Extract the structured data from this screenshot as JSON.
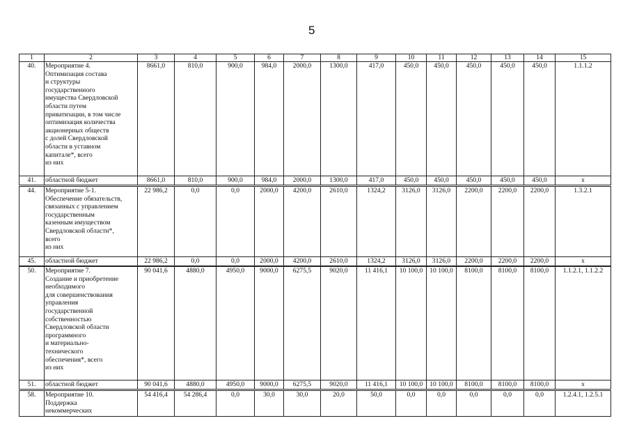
{
  "page_number": "5",
  "header": [
    "1",
    "2",
    "3",
    "4",
    "5",
    "6",
    "7",
    "8",
    "9",
    "10",
    "11",
    "12",
    "13",
    "14",
    "15"
  ],
  "blocks": [
    {
      "rows": [
        {
          "num": "40.",
          "desc": "Мероприятие 4.\nОптимизация состава\nи структуры\nгосударственного\nимущества Свердловской\nобласти путем\nприватизации, в том числе\nоптимизация количества\nакционерных обществ\nс долей Свердловской\nобласти в уставном\nкапитале*, всего\nиз них",
          "values": [
            "8661,0",
            "810,0",
            "900,0",
            "984,0",
            "2000,0",
            "1300,0",
            "417,0",
            "450,0",
            "450,0",
            "450,0",
            "450,0",
            "450,0"
          ],
          "target": "1.1.1.2"
        },
        {
          "num": "41.",
          "desc": "областной бюджет",
          "values": [
            "8661,0",
            "810,0",
            "900,0",
            "984,0",
            "2000,0",
            "1300,0",
            "417,0",
            "450,0",
            "450,0",
            "450,0",
            "450,0",
            "450,0"
          ],
          "target": "x"
        }
      ]
    },
    {
      "rows": [
        {
          "num": "44.",
          "desc": "Мероприятие 5-1.\nОбеспечение обязательств,\nсвязанных с управлением\nгосударственным\nказенным имуществом\nСвердловской области*,\nвсего\nиз них",
          "values": [
            "22 986,2",
            "0,0",
            "0,0",
            "2000,0",
            "4200,0",
            "2610,0",
            "1324,2",
            "3126,0",
            "3126,0",
            "2200,0",
            "2200,0",
            "2200,0"
          ],
          "target": "1.3.2.1"
        },
        {
          "num": "45.",
          "desc": "областной бюджет",
          "values": [
            "22 986,2",
            "0,0",
            "0,0",
            "2000,0",
            "4200,0",
            "2610,0",
            "1324,2",
            "3126,0",
            "3126,0",
            "2200,0",
            "2200,0",
            "2200,0"
          ],
          "target": "x"
        }
      ]
    },
    {
      "rows": [
        {
          "num": "50.",
          "desc": "Мероприятие 7.\nСоздание и приобретение\nнеобходимого\nдля совершенствования\nуправления\nгосударственной\nсобственностью\nСвердловской области\nпрограммного\nи материально-\nтехнического\nобеспечения*, всего\nиз них",
          "values": [
            "90 041,6",
            "4880,0",
            "4950,0",
            "9000,0",
            "6275,5",
            "9020,0",
            "11 416,1",
            "10 100,0",
            "10 100,0",
            "8100,0",
            "8100,0",
            "8100,0"
          ],
          "target": "1.1.2.1, 1.1.2.2"
        },
        {
          "num": "51.",
          "desc": "областной бюджет",
          "values": [
            "90 041,6",
            "4880,0",
            "4950,0",
            "9000,0",
            "6275,5",
            "9020,0",
            "11 416,1",
            "10 100,0",
            "10 100,0",
            "8100,0",
            "8100,0",
            "8100,0"
          ],
          "target": "x"
        }
      ]
    },
    {
      "rows": [
        {
          "num": "58.",
          "desc": "Мероприятие 10.\nПоддержка\nнекоммерческих",
          "values": [
            "54 416,4",
            "54 286,4",
            "0,0",
            "30,0",
            "30,0",
            "20,0",
            "50,0",
            "0,0",
            "0,0",
            "0,0",
            "0,0",
            "0,0"
          ],
          "target": "1.2.4.1, 1.2.5.1"
        }
      ]
    }
  ]
}
